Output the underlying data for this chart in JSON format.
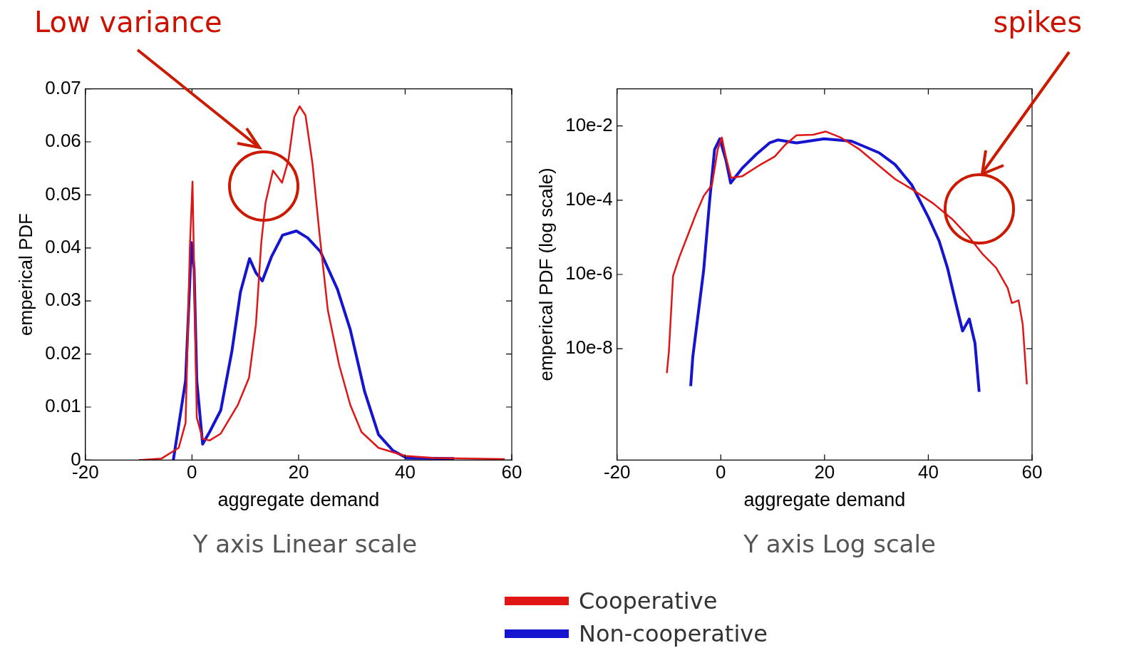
{
  "chart_data": [
    {
      "type": "line",
      "xlabel": "aggregate demand",
      "ylabel": "emperical PDF",
      "annotations": [
        "Low variance",
        "Y axis Linear scale"
      ],
      "legend": "bottom",
      "grid": false,
      "xlim": [
        -20,
        60
      ],
      "xticks": [
        -20,
        0,
        20,
        40,
        60
      ],
      "ylim": [
        0,
        0.07
      ],
      "yticks": [
        0,
        0.01,
        0.02,
        0.03,
        0.04,
        0.05,
        0.06,
        0.07
      ],
      "series": [
        {
          "name": "Cooperative",
          "color": "#e01515",
          "x": [
            -10,
            -5.7,
            -2.5,
            -1.2,
            -0.4,
            0.1,
            0.9,
            2.0,
            3.3,
            5.4,
            8.6,
            10.7,
            12,
            13,
            13.8,
            15.2,
            16.9,
            18.1,
            19.2,
            20.2,
            21.3,
            22.6,
            23.9,
            25.5,
            27.6,
            29.7,
            31.8,
            35,
            40,
            45.5,
            58.7
          ],
          "values": [
            0,
            0.0003,
            0.0023,
            0.007,
            0.04,
            0.0525,
            0.008,
            0.004,
            0.0037,
            0.005,
            0.0104,
            0.0155,
            0.0256,
            0.041,
            0.0485,
            0.0546,
            0.0523,
            0.0566,
            0.0647,
            0.0667,
            0.065,
            0.056,
            0.0429,
            0.0282,
            0.018,
            0.0104,
            0.0053,
            0.0023,
            0.0008,
            0.0004,
            0.0002
          ]
        },
        {
          "name": "Non-cooperative",
          "color": "#1515d0",
          "x": [
            -3.5,
            -1.2,
            -0.1,
            0.4,
            0.9,
            2.0,
            3.3,
            5.4,
            7.5,
            9.1,
            10.8,
            12,
            13.2,
            14.9,
            17,
            19.6,
            21.7,
            24.1,
            27.3,
            29.7,
            32.4,
            35,
            37.7,
            40.3,
            49.2
          ],
          "values": [
            0,
            0.015,
            0.041,
            0.036,
            0.015,
            0.003,
            0.0053,
            0.0094,
            0.0206,
            0.0317,
            0.038,
            0.0353,
            0.0338,
            0.0383,
            0.0424,
            0.0432,
            0.0419,
            0.0393,
            0.0322,
            0.0246,
            0.0129,
            0.0048,
            0.0018,
            0.0004,
            0.0003
          ]
        }
      ]
    },
    {
      "type": "line",
      "xlabel": "aggregate demand",
      "ylabel": "emperical PDF (log scale)",
      "annotations": [
        "spikes",
        "Y axis Log scale"
      ],
      "grid": false,
      "log": "y",
      "xlim": [
        -20,
        60
      ],
      "xticks": [
        -20,
        0,
        20,
        40,
        60
      ],
      "ylim": [
        1e-10,
        1
      ],
      "yticks": [
        {
          "value": 0.1,
          "label": "10e-2"
        },
        {
          "value": 0.001,
          "label": "10e-4"
        },
        {
          "value": 1e-05,
          "label": "10e-6"
        },
        {
          "value": 1e-07,
          "label": "10e-8"
        }
      ],
      "series": [
        {
          "color": "#e01515",
          "x": [
            -10.4,
            -10,
            -9.2,
            -8,
            -6.4,
            -4.8,
            -3.3,
            -1.7,
            -0.6,
            0.2,
            1,
            2,
            4.1,
            7.3,
            10.4,
            12.5,
            14.6,
            17.8,
            20.2,
            23.1,
            26.8,
            30.5,
            33.6,
            36.8,
            41,
            44.7,
            47.9,
            50.5,
            53.1,
            55.3,
            56.1,
            57.4,
            58.2,
            59
          ],
          "values": [
            2.2e-08,
            8.5e-08,
            9.1e-06,
            2.9e-05,
            0.00011,
            0.00042,
            0.0013,
            0.0026,
            0.023,
            0.049,
            0.014,
            0.004,
            0.0044,
            0.0085,
            0.015,
            0.032,
            0.056,
            0.058,
            0.071,
            0.049,
            0.023,
            0.0085,
            0.0037,
            0.002,
            0.00081,
            0.0003,
            0.0001,
            3.5e-05,
            1.5e-05,
            4.3e-06,
            1.7e-06,
            2e-06,
            4.5e-07,
            1.1e-08
          ]
        },
        {
          "color": "#1515d0",
          "x": [
            -5.8,
            -5.4,
            -4.3,
            -3.3,
            -2.2,
            -1.2,
            -0.2,
            1,
            1.9,
            4.1,
            6.8,
            9.4,
            11,
            14.6,
            19.9,
            25.2,
            30.5,
            33.6,
            36.8,
            40,
            42.1,
            43.7,
            45.3,
            46.6,
            47.9,
            49,
            49.8
          ],
          "values": [
            9.8e-09,
            6e-08,
            1e-06,
            1.3e-05,
            0.00081,
            0.023,
            0.045,
            0.012,
            0.0029,
            0.0072,
            0.017,
            0.035,
            0.042,
            0.035,
            0.045,
            0.039,
            0.019,
            0.0091,
            0.0026,
            0.00035,
            7.9e-05,
            1.5e-05,
            1.7e-06,
            3e-07,
            6.3e-07,
            1.4e-07,
            6.9e-09
          ]
        }
      ]
    }
  ]
}
